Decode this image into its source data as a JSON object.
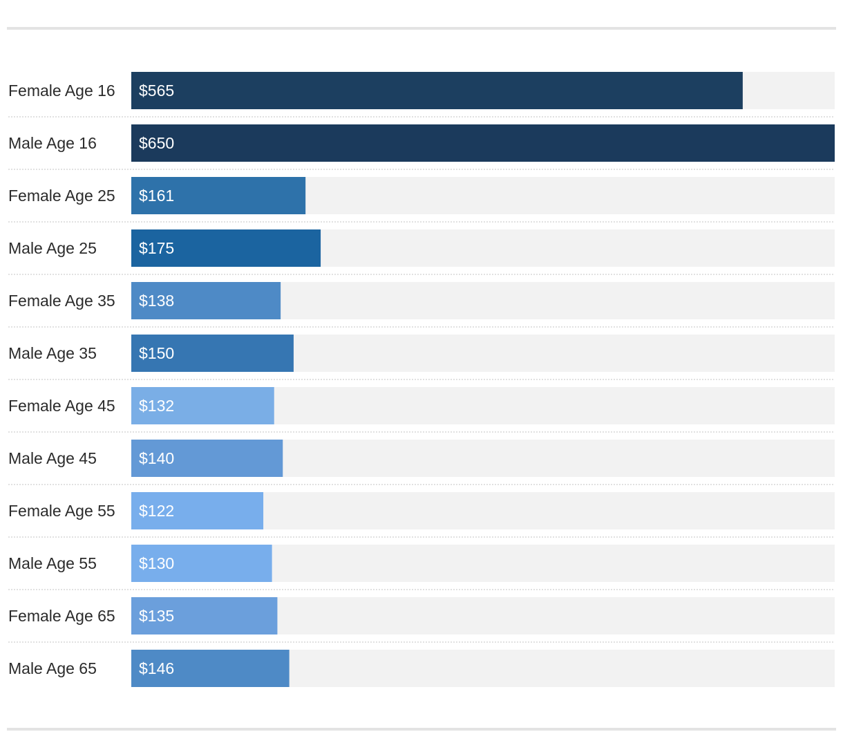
{
  "chart_data": {
    "type": "bar",
    "orientation": "horizontal",
    "title": "",
    "xlabel": "",
    "ylabel": "",
    "xlim": [
      0,
      650
    ],
    "grid": false,
    "legend": "none",
    "value_prefix": "$",
    "categories": [
      "Female Age 16",
      "Male Age 16",
      "Female Age 25",
      "Male Age 25",
      "Female Age 35",
      "Male Age 35",
      "Female Age 45",
      "Male Age 45",
      "Female Age 55",
      "Male Age 55",
      "Female Age 65",
      "Male Age 65"
    ],
    "values": [
      565,
      650,
      161,
      175,
      138,
      150,
      132,
      140,
      122,
      130,
      135,
      146
    ],
    "value_labels": [
      "$565",
      "$650",
      "$161",
      "$175",
      "$138",
      "$150",
      "$132",
      "$140",
      "$122",
      "$130",
      "$135",
      "$146"
    ],
    "bar_colors": [
      "#1c3f60",
      "#1b3a5c",
      "#2e72aa",
      "#1b64a0",
      "#4e8ac6",
      "#3676b2",
      "#7aaee6",
      "#6399d6",
      "#78aeec",
      "#78aeec",
      "#6b9fdc",
      "#4e8ac6"
    ],
    "track_color": "#f2f2f2"
  }
}
